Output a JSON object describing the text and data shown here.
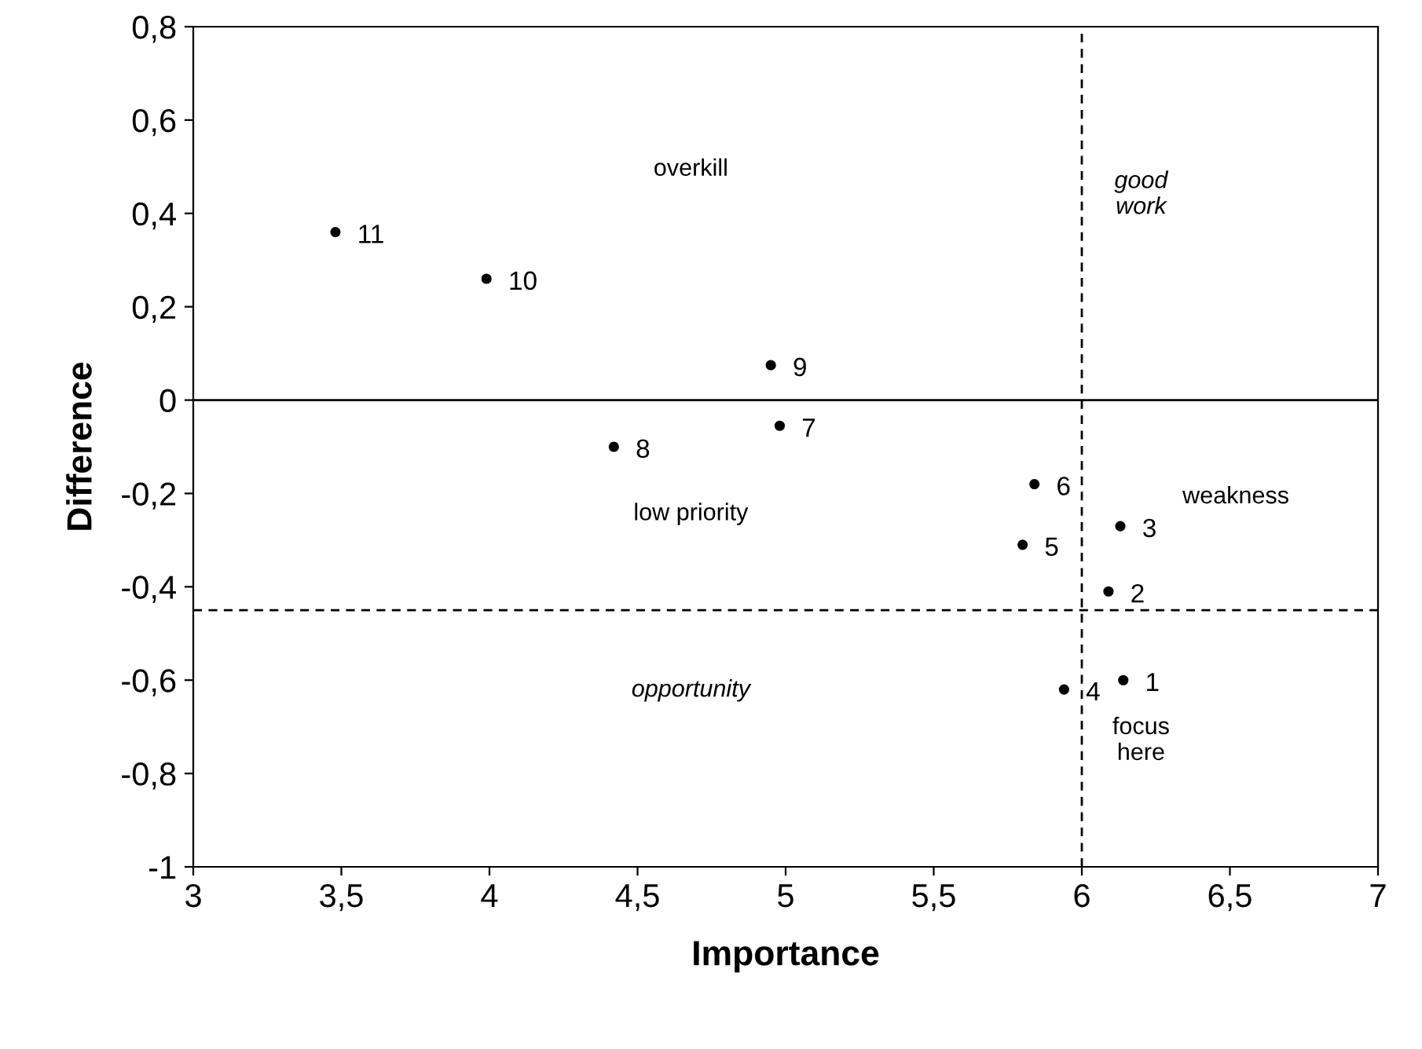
{
  "chart_data": {
    "type": "scatter",
    "xlabel": "Importance",
    "ylabel": "Difference",
    "x": [
      6.14,
      6.09,
      6.13,
      5.94,
      5.8,
      5.84,
      4.98,
      4.42,
      4.95,
      3.99,
      3.48
    ],
    "values": [
      -0.6,
      -0.41,
      -0.27,
      -0.62,
      -0.31,
      -0.18,
      -0.055,
      -0.1,
      0.075,
      0.26,
      0.36
    ],
    "color": "#000000",
    "marker": "circle",
    "xlim": [
      3,
      7
    ],
    "ylim": [
      -1,
      0.8
    ],
    "xticks": [
      3,
      {
        "value": 3.5,
        "label": "3,5"
      },
      4,
      {
        "value": 4.5,
        "label": "4,5"
      },
      5,
      {
        "value": 5.5,
        "label": "5,5"
      },
      6,
      {
        "value": 6.5,
        "label": "6,5"
      },
      7
    ],
    "yticks": [
      {
        "value": 0.8,
        "label": "0,8"
      },
      {
        "value": 0.6,
        "label": "0,6"
      },
      {
        "value": 0.4,
        "label": "0,4"
      },
      {
        "value": 0.2,
        "label": "0,2"
      },
      0,
      {
        "value": -0.2,
        "label": "-0,2"
      },
      {
        "value": -0.4,
        "label": "-0,4"
      },
      {
        "value": -0.6,
        "label": "-0,6"
      },
      {
        "value": -0.8,
        "label": "-0,8"
      },
      -1
    ],
    "grid": false,
    "legend": false,
    "ref_lines": [
      {
        "axis": "x",
        "value": 6.0,
        "line_style": "dashed",
        "color": "#000000"
      },
      {
        "axis": "y",
        "value": -0.45,
        "line_style": "dashed",
        "color": "#000000"
      },
      {
        "axis": "y",
        "value": 0,
        "line_style": "solid",
        "color": "#000000"
      }
    ],
    "annotations": [
      {
        "text": "1",
        "x": 6.14,
        "y": -0.6
      },
      {
        "text": "2",
        "x": 6.09,
        "y": -0.41
      },
      {
        "text": "3",
        "x": 6.13,
        "y": -0.27
      },
      {
        "text": "4",
        "x": 5.94,
        "y": -0.62
      },
      {
        "text": "5",
        "x": 5.8,
        "y": -0.31
      },
      {
        "text": "6",
        "x": 5.84,
        "y": -0.18
      },
      {
        "text": "7",
        "x": 4.98,
        "y": -0.055
      },
      {
        "text": "8",
        "x": 4.42,
        "y": -0.1
      },
      {
        "text": "9",
        "x": 4.95,
        "y": 0.075
      },
      {
        "text": "10",
        "x": 3.99,
        "y": 0.26
      },
      {
        "text": "11",
        "x": 3.48,
        "y": 0.36
      },
      "overkill",
      "good\nwork",
      "weakness",
      "low priority",
      "opportunity",
      "focus\nhere"
    ]
  }
}
